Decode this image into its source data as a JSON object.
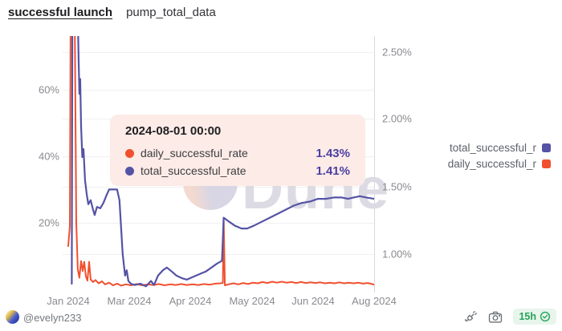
{
  "header": {
    "query_name": "successful launch",
    "table_name": "pump_total_data"
  },
  "colors": {
    "daily_orange": "#F0502F",
    "total_purple": "#5553A5",
    "tooltip_value": "#4C3FA4",
    "badge_green": "#26A359",
    "tooltip_bg": "#FCEBE6"
  },
  "tooltip": {
    "title": "2024-08-01 00:00",
    "rows": [
      {
        "label": "daily_successful_rate",
        "value": "1.43%",
        "color": "#F0502F"
      },
      {
        "label": "total_successful_rate",
        "value": "1.41%",
        "color": "#5553A5"
      }
    ]
  },
  "legend": [
    {
      "label": "total_successful_r",
      "color": "#5553A5"
    },
    {
      "label": "daily_successful_r",
      "color": "#F0502F"
    }
  ],
  "watermark": {
    "text": "Dune",
    "logo": "dune-logo-circle"
  },
  "footer": {
    "handle": "@evelyn233",
    "icons": [
      "plug-icon",
      "camera-icon",
      "verified-check-icon"
    ],
    "refresh_badge": "15h"
  },
  "chart_data": {
    "type": "line",
    "x_unit": "days_since_2024-01-01",
    "x_axis": {
      "tick_labels": [
        "Jan 2024",
        "Mar 2024",
        "Apr 2024",
        "May 2024",
        "Jun 2024",
        "Aug 2024"
      ],
      "tick_days": [
        0,
        60,
        91,
        121,
        152,
        213
      ]
    },
    "left_axis": {
      "tick_labels": [
        "60%",
        "40%",
        "20%"
      ],
      "tick_values": [
        60,
        40,
        20
      ],
      "unit": "%",
      "range": [
        0,
        76
      ]
    },
    "right_axis": {
      "tick_labels": [
        "2.50%",
        "2.00%",
        "1.50%",
        "1.00%"
      ],
      "tick_values": [
        2.5,
        2.0,
        1.5,
        1.0
      ],
      "unit": "%",
      "range": [
        0.75,
        2.6
      ]
    },
    "grid": true,
    "legend_position": "right",
    "series": [
      {
        "name": "daily_successful_rate",
        "color": "#F0502F",
        "axis": "left",
        "points": [
          [
            0,
            13
          ],
          [
            1.6,
            19
          ],
          [
            2.4,
            85
          ],
          [
            6.3,
            85
          ],
          [
            7.9,
            20
          ],
          [
            9.4,
            6
          ],
          [
            11,
            3.5
          ],
          [
            12.6,
            8.5
          ],
          [
            14.2,
            5.5
          ],
          [
            15.7,
            8.3
          ],
          [
            17.3,
            4
          ],
          [
            18.9,
            2.6
          ],
          [
            20.5,
            8.3
          ],
          [
            22,
            3
          ],
          [
            24.4,
            2.2
          ],
          [
            26.8,
            2.8
          ],
          [
            29.9,
            1.8
          ],
          [
            33.1,
            2.4
          ],
          [
            36.2,
            1.5
          ],
          [
            40.2,
            2
          ],
          [
            44.1,
            1.2
          ],
          [
            48,
            1.7
          ],
          [
            52,
            1.1
          ],
          [
            56.7,
            1.5
          ],
          [
            60.8,
            1.2
          ],
          [
            63.7,
            1.6
          ],
          [
            66.5,
            1.2
          ],
          [
            69.4,
            1.5
          ],
          [
            72.2,
            1.3
          ],
          [
            75.1,
            1.6
          ],
          [
            77.9,
            1.2
          ],
          [
            80.7,
            1.5
          ],
          [
            83.6,
            1.3
          ],
          [
            86.4,
            1.6
          ],
          [
            89.3,
            1.3
          ],
          [
            92.2,
            1.5
          ],
          [
            94.9,
            1.3
          ],
          [
            97.7,
            1.6
          ],
          [
            100.5,
            1.4
          ],
          [
            103.2,
            1.7
          ],
          [
            105.6,
            1.8
          ],
          [
            106.8,
            1.9
          ],
          [
            107.2,
            21.4
          ],
          [
            107.8,
            1.2
          ],
          [
            109.5,
            1.5
          ],
          [
            111.9,
            1.8
          ],
          [
            114.3,
            1.5
          ],
          [
            116.7,
            1.9
          ],
          [
            119,
            1.6
          ],
          [
            121.4,
            2
          ],
          [
            123.9,
            1.8
          ],
          [
            126.3,
            2.2
          ],
          [
            128.8,
            1.9
          ],
          [
            131.2,
            2.3
          ],
          [
            133.6,
            2
          ],
          [
            136.1,
            2.3
          ],
          [
            138.5,
            2
          ],
          [
            141,
            2.2
          ],
          [
            143.4,
            1.9
          ],
          [
            145.9,
            2.2
          ],
          [
            148.3,
            1.9
          ],
          [
            150.8,
            2.1
          ],
          [
            154.4,
            1.9
          ],
          [
            159.1,
            2.1
          ],
          [
            163.9,
            1.8
          ],
          [
            168.6,
            2
          ],
          [
            173.4,
            1.8
          ],
          [
            178.1,
            2.1
          ],
          [
            182.9,
            1.8
          ],
          [
            187.7,
            2
          ],
          [
            192.4,
            1.8
          ],
          [
            197.2,
            2
          ],
          [
            201.9,
            1.7
          ],
          [
            206.7,
            1.9
          ],
          [
            213,
            1.43
          ]
        ]
      },
      {
        "name": "total_successful_rate",
        "color": "#5553A5",
        "axis": "right",
        "points": [
          [
            3.5,
            0.78
          ],
          [
            4,
            2.75
          ],
          [
            9.5,
            2.75
          ],
          [
            10.2,
            2.45
          ],
          [
            11,
            2.19
          ],
          [
            11.8,
            2.3
          ],
          [
            12.6,
            1.95
          ],
          [
            13.8,
            1.72
          ],
          [
            15,
            1.78
          ],
          [
            16.5,
            1.55
          ],
          [
            18.1,
            1.45
          ],
          [
            19.7,
            1.37
          ],
          [
            22,
            1.4
          ],
          [
            24.4,
            1.33
          ],
          [
            26,
            1.29
          ],
          [
            28.3,
            1.35
          ],
          [
            31.5,
            1.34
          ],
          [
            34.6,
            1.38
          ],
          [
            37.8,
            1.44
          ],
          [
            40.2,
            1.48
          ],
          [
            48,
            1.48
          ],
          [
            50.4,
            1.4
          ],
          [
            53.5,
            1
          ],
          [
            55.9,
            0.84
          ],
          [
            57.5,
            0.88
          ],
          [
            59.1,
            0.8
          ],
          [
            60.8,
            0.78
          ],
          [
            62.8,
            0.77
          ],
          [
            65.7,
            0.78
          ],
          [
            68.5,
            0.76
          ],
          [
            71,
            0.8
          ],
          [
            72.6,
            0.77
          ],
          [
            74.6,
            0.84
          ],
          [
            77.1,
            0.88
          ],
          [
            79.1,
            0.9
          ],
          [
            81.6,
            0.87
          ],
          [
            84,
            0.84
          ],
          [
            86.9,
            0.82
          ],
          [
            89.3,
            0.81
          ],
          [
            92.2,
            0.83
          ],
          [
            95.3,
            0.85
          ],
          [
            98.5,
            0.87
          ],
          [
            101.3,
            0.9
          ],
          [
            104,
            0.93
          ],
          [
            106.4,
            0.95
          ],
          [
            107.2,
            1.27
          ],
          [
            109.9,
            1.24
          ],
          [
            112.7,
            1.21
          ],
          [
            115.9,
            1.19
          ],
          [
            118.6,
            1.19
          ],
          [
            121.8,
            1.21
          ],
          [
            125.9,
            1.24
          ],
          [
            130,
            1.27
          ],
          [
            134.1,
            1.3
          ],
          [
            138.1,
            1.33
          ],
          [
            142.2,
            1.36
          ],
          [
            146.3,
            1.38
          ],
          [
            150.4,
            1.39
          ],
          [
            156.8,
            1.41
          ],
          [
            164.7,
            1.41
          ],
          [
            172.6,
            1.42
          ],
          [
            180.5,
            1.42
          ],
          [
            186.9,
            1.41
          ],
          [
            192.4,
            1.42
          ],
          [
            198.7,
            1.43
          ],
          [
            205.1,
            1.42
          ],
          [
            213,
            1.41
          ]
        ]
      }
    ]
  }
}
